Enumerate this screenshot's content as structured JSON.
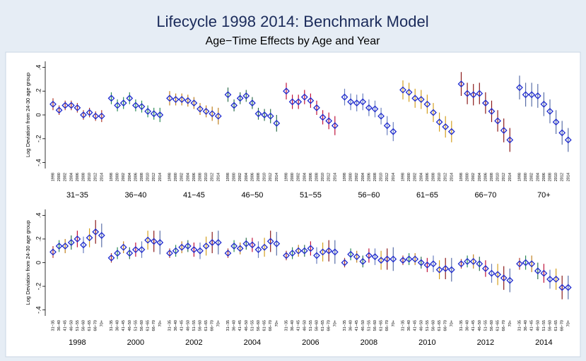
{
  "chart_data": {
    "type": "errorbar",
    "title": "Lifecycle 1998 2014: Benchmark Model",
    "subtitle": "Age−Time Effects by Age and Year",
    "y_label": "Log Deviation from 24-30 age group",
    "years": [
      "1998",
      "2000",
      "2002",
      "2004",
      "2006",
      "2008",
      "2010",
      "2012",
      "2014"
    ],
    "series": [
      {
        "name": "31−35",
        "color": "#b03a2e",
        "values": [
          0.09,
          0.04,
          0.08,
          0.08,
          0.06,
          0.0,
          0.02,
          -0.01,
          -0.01
        ],
        "errors": [
          0.05,
          0.04,
          0.04,
          0.04,
          0.04,
          0.04,
          0.04,
          0.04,
          0.05
        ]
      },
      {
        "name": "36−40",
        "color": "#2e8b57",
        "values": [
          0.14,
          0.08,
          0.1,
          0.14,
          0.08,
          0.07,
          0.03,
          0.01,
          0.0
        ],
        "errors": [
          0.05,
          0.05,
          0.05,
          0.05,
          0.05,
          0.05,
          0.05,
          0.05,
          0.06
        ]
      },
      {
        "name": "41−45",
        "color": "#c08020",
        "values": [
          0.14,
          0.13,
          0.13,
          0.12,
          0.1,
          0.05,
          0.03,
          0.01,
          -0.01
        ],
        "errors": [
          0.06,
          0.05,
          0.05,
          0.05,
          0.05,
          0.05,
          0.05,
          0.06,
          0.07
        ]
      },
      {
        "name": "46−50",
        "color": "#2f6f4f",
        "values": [
          0.17,
          0.08,
          0.14,
          0.16,
          0.1,
          0.01,
          0.0,
          -0.01,
          -0.07
        ],
        "errors": [
          0.06,
          0.05,
          0.05,
          0.05,
          0.05,
          0.05,
          0.05,
          0.06,
          0.07
        ]
      },
      {
        "name": "51−55",
        "color": "#c0143c",
        "values": [
          0.2,
          0.11,
          0.11,
          0.15,
          0.12,
          0.06,
          -0.02,
          -0.05,
          -0.09
        ],
        "errors": [
          0.07,
          0.06,
          0.06,
          0.06,
          0.06,
          0.06,
          0.06,
          0.07,
          0.08
        ]
      },
      {
        "name": "56−60",
        "color": "#6a7fbf",
        "values": [
          0.15,
          0.11,
          0.1,
          0.11,
          0.06,
          0.05,
          -0.01,
          -0.09,
          -0.14
        ],
        "errors": [
          0.07,
          0.07,
          0.07,
          0.07,
          0.07,
          0.07,
          0.07,
          0.08,
          0.08
        ]
      },
      {
        "name": "61−65",
        "color": "#d4a020",
        "values": [
          0.21,
          0.19,
          0.14,
          0.13,
          0.09,
          0.02,
          -0.06,
          -0.1,
          -0.14
        ],
        "errors": [
          0.08,
          0.08,
          0.08,
          0.08,
          0.08,
          0.08,
          0.08,
          0.09,
          0.09
        ]
      },
      {
        "name": "66−70",
        "color": "#8b1a1a",
        "values": [
          0.26,
          0.18,
          0.17,
          0.18,
          0.1,
          0.03,
          -0.05,
          -0.13,
          -0.21
        ],
        "errors": [
          0.1,
          0.09,
          0.09,
          0.09,
          0.09,
          0.09,
          0.09,
          0.1,
          0.1
        ]
      },
      {
        "name": "70+",
        "color": "#5a6fa8",
        "values": [
          0.23,
          0.17,
          0.17,
          0.16,
          0.09,
          0.03,
          -0.06,
          -0.15,
          -0.21
        ],
        "errors": [
          0.1,
          0.1,
          0.1,
          0.1,
          0.1,
          0.1,
          0.1,
          0.1,
          0.1
        ]
      }
    ],
    "marker_color": "#1f2bd0",
    "ylim": [
      -0.45,
      0.45
    ],
    "yticks": [
      {
        "value": -0.4,
        "label": "-.4"
      },
      {
        "value": -0.2,
        "label": "-.2"
      },
      0,
      {
        "value": 0.2,
        "label": ".2"
      },
      {
        "value": 0.4,
        "label": ".4"
      }
    ]
  }
}
